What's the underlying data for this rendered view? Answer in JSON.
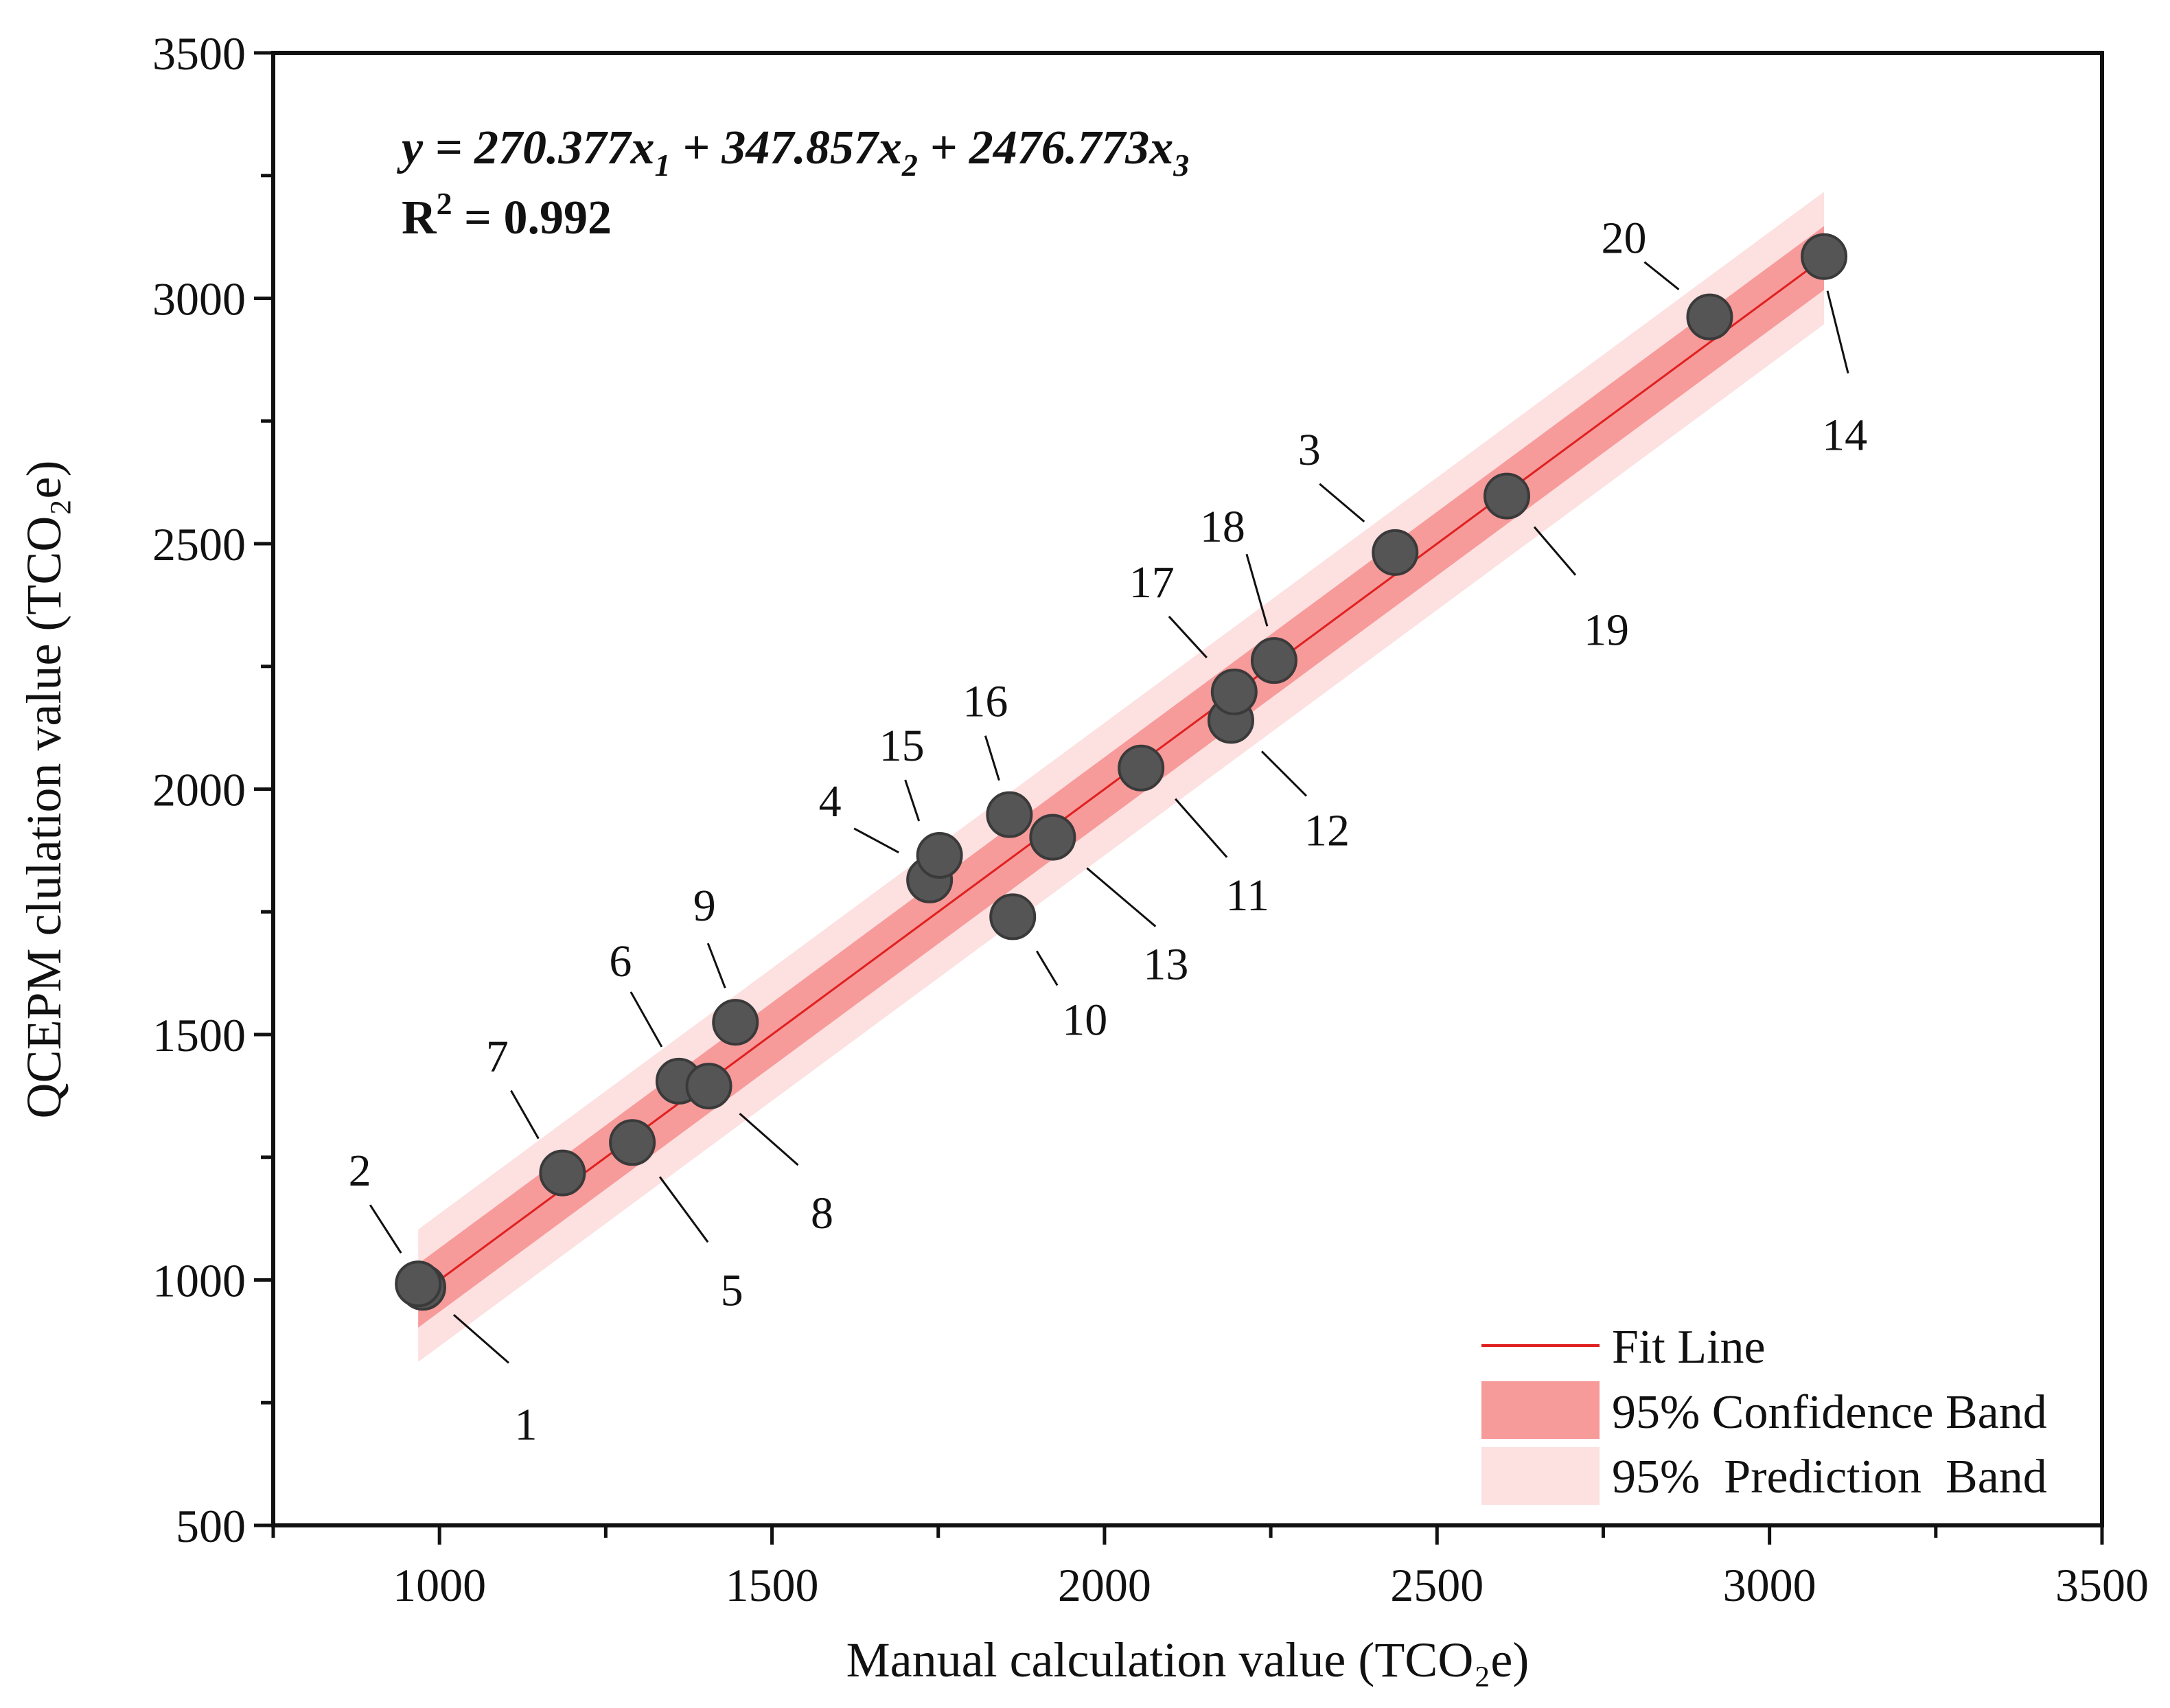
{
  "chart_data": {
    "type": "scatter",
    "xlabel": "Manual calculation value (TCO₂e)",
    "ylabel": "QCEPM clulation value (TCO₂e)",
    "xlim": [
      750,
      3500
    ],
    "ylim": [
      500,
      3500
    ],
    "xticks": [
      1000,
      1500,
      2000,
      2500,
      3000,
      3500
    ],
    "yticks": [
      500,
      1000,
      1500,
      2000,
      2500,
      3000,
      3500
    ],
    "equation": {
      "prefix": "y = 270.377x",
      "sub1": "1",
      "mid1": " + 347.857x",
      "sub2": "2",
      "mid2": " + 2476.773x",
      "sub3": "3"
    },
    "r2": {
      "lead": "R",
      "sup": "2",
      "rest": " = 0.992"
    },
    "points": [
      {
        "label": "1",
        "x": 975,
        "y": 985
      },
      {
        "label": "2",
        "x": 968,
        "y": 992
      },
      {
        "label": "3",
        "x": 2437,
        "y": 2482
      },
      {
        "label": "4",
        "x": 1737,
        "y": 1815
      },
      {
        "label": "5",
        "x": 1290,
        "y": 1280
      },
      {
        "label": "6",
        "x": 1360,
        "y": 1405
      },
      {
        "label": "7",
        "x": 1185,
        "y": 1218
      },
      {
        "label": "8",
        "x": 1405,
        "y": 1395
      },
      {
        "label": "9",
        "x": 1445,
        "y": 1525
      },
      {
        "label": "10",
        "x": 1862,
        "y": 1740
      },
      {
        "label": "11",
        "x": 2055,
        "y": 2043
      },
      {
        "label": "12",
        "x": 2190,
        "y": 2140
      },
      {
        "label": "13",
        "x": 1922,
        "y": 1902
      },
      {
        "label": "14",
        "x": 3082,
        "y": 3085
      },
      {
        "label": "15",
        "x": 1752,
        "y": 1865
      },
      {
        "label": "16",
        "x": 1857,
        "y": 1948
      },
      {
        "label": "17",
        "x": 2195,
        "y": 2198
      },
      {
        "label": "18",
        "x": 2255,
        "y": 2262
      },
      {
        "label": "19",
        "x": 2605,
        "y": 2597
      },
      {
        "label": "20",
        "x": 2910,
        "y": 2962
      }
    ],
    "fit_line": {
      "x_start": 968,
      "x_end": 3082,
      "slope": 1.0,
      "intercept": 0
    },
    "confidence_band_halfwidth": 65,
    "prediction_band_halfwidth": 135,
    "legend": {
      "position": "bottom-right",
      "items": [
        "Fit Line",
        "95% Confidence Band",
        "95%  Prediction  Band"
      ]
    },
    "colors": {
      "point": "#555555",
      "fit_line": "#e02020",
      "confidence_band": "#f79a9a",
      "prediction_band": "#fde0e0"
    }
  }
}
